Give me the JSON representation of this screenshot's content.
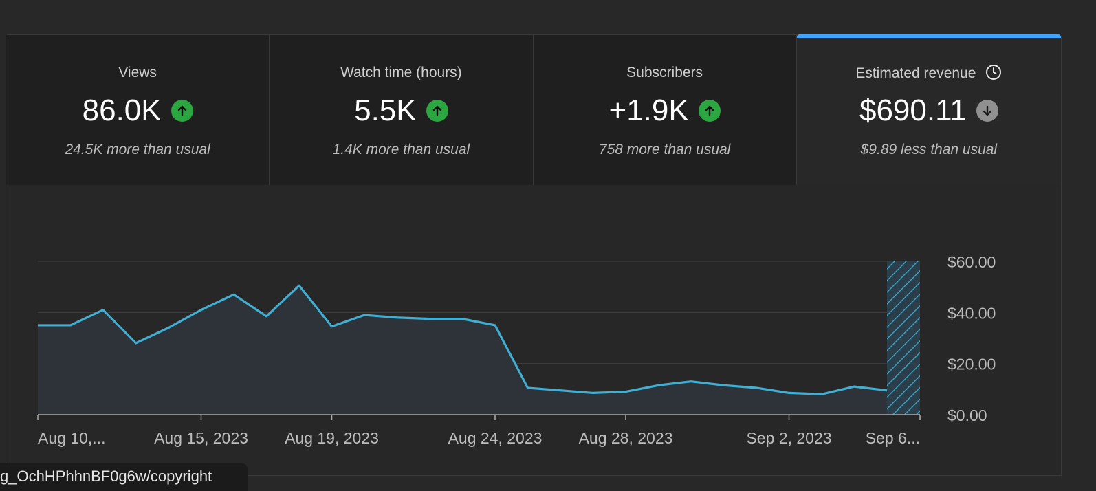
{
  "cards": [
    {
      "title": "Views",
      "value": "86.0K",
      "trend": "up",
      "note": "24.5K more than usual"
    },
    {
      "title": "Watch time (hours)",
      "value": "5.5K",
      "trend": "up",
      "note": "1.4K more than usual"
    },
    {
      "title": "Subscribers",
      "value": "+1.9K",
      "trend": "up",
      "note": "758 more than usual"
    },
    {
      "title": "Estimated revenue",
      "value": "$690.11",
      "trend": "down",
      "note": "$9.89 less than usual",
      "selected": true
    }
  ],
  "colors": {
    "accent": "#3ea6ff",
    "line": "#41aed3",
    "up": "#2ba640",
    "down": "#909090"
  },
  "footer_url": "g_OchHPhhnBF0g6w/copyright",
  "chart_data": {
    "type": "area",
    "x": [
      "Aug 10, 2023",
      "Aug 11, 2023",
      "Aug 12, 2023",
      "Aug 13, 2023",
      "Aug 14, 2023",
      "Aug 15, 2023",
      "Aug 16, 2023",
      "Aug 17, 2023",
      "Aug 18, 2023",
      "Aug 19, 2023",
      "Aug 20, 2023",
      "Aug 21, 2023",
      "Aug 22, 2023",
      "Aug 23, 2023",
      "Aug 24, 2023",
      "Aug 25, 2023",
      "Aug 26, 2023",
      "Aug 27, 2023",
      "Aug 28, 2023",
      "Aug 29, 2023",
      "Aug 30, 2023",
      "Aug 31, 2023",
      "Sep 1, 2023",
      "Sep 2, 2023",
      "Sep 3, 2023",
      "Sep 4, 2023",
      "Sep 5, 2023"
    ],
    "series": [
      {
        "values": [
          35,
          35,
          41,
          28,
          34,
          41,
          47,
          38.5,
          50.5,
          34.5,
          39,
          38,
          37.5,
          37.5,
          35,
          10.5,
          9.5,
          8.5,
          9,
          11.5,
          13,
          11.5,
          10.5,
          8.5,
          8,
          11,
          9.5
        ]
      }
    ],
    "x_tick_labels": [
      "Aug 10,...",
      "Aug 15, 2023",
      "Aug 19, 2023",
      "Aug 24, 2023",
      "Aug 28, 2023",
      "Sep 2, 2023",
      "Sep 6..."
    ],
    "x_tick_dates": [
      "Aug 10, 2023",
      "Aug 15, 2023",
      "Aug 19, 2023",
      "Aug 24, 2023",
      "Aug 28, 2023",
      "Sep 2, 2023",
      "Sep 6, 2023"
    ],
    "y_ticks": [
      0,
      20,
      40,
      60
    ],
    "y_tick_labels": [
      "$0.00",
      "$20.00",
      "$40.00",
      "$60.00"
    ],
    "ylim": [
      0,
      60
    ],
    "grid": true,
    "partial_day": "Sep 6, 2023"
  }
}
